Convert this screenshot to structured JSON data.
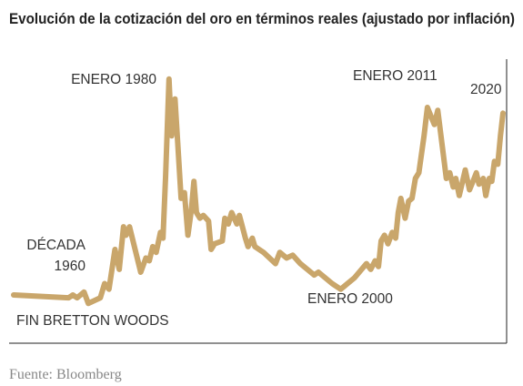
{
  "chart_data": {
    "type": "line",
    "title": "Evolución de la cotización del oro en términos reales (ajustado por inflación)",
    "source": "Fuente: Bloomberg",
    "annotations": [
      "ENERO 1980",
      "ENERO 2011",
      "2020",
      "DÉCADA",
      "1960",
      "ENERO 2000",
      "FIN BRETTON WOODS"
    ],
    "color": "#c9a66b",
    "xlim": [
      1962,
      2019
    ],
    "ylim": [
      0,
      100
    ],
    "x": [
      1962.0,
      1968.4,
      1968.9,
      1969.4,
      1970.2,
      1970.7,
      1972.1,
      1972.6,
      1973.1,
      1973.8,
      1974.3,
      1974.8,
      1975.1,
      1975.5,
      1976.8,
      1977.4,
      1977.8,
      1978.2,
      1978.6,
      1979.1,
      1979.4,
      1979.7,
      1980.1,
      1980.4,
      1980.8,
      1981.1,
      1981.5,
      1981.9,
      1982.3,
      1982.7,
      1983.0,
      1983.3,
      1983.7,
      1984.1,
      1984.7,
      1985.0,
      1985.4,
      1986.3,
      1986.6,
      1987.0,
      1987.4,
      1988.0,
      1988.3,
      1989.0,
      1989.3,
      1989.8,
      1990.1,
      1991.1,
      1992.5,
      1993.0,
      1993.8,
      1994.5,
      1995.4,
      1997.0,
      1997.5,
      1999.1,
      2000.1,
      2001.7,
      2003.1,
      2003.6,
      2004.1,
      2004.5,
      2004.8,
      2005.2,
      2005.6,
      2006.1,
      2006.5,
      2006.8,
      2007.1,
      2007.6,
      2008.0,
      2008.4,
      2008.8,
      2009.2,
      2009.8,
      2010.2,
      2010.6,
      2011.0,
      2011.4,
      2011.9,
      2012.4,
      2012.8,
      2013.2,
      2013.5,
      2013.9,
      2014.3,
      2014.6,
      2015.1,
      2015.5,
      2015.9,
      2016.2,
      2016.7,
      2017.0,
      2017.4,
      2017.7,
      2018.0,
      2018.4,
      2018.7,
      2019.0
    ],
    "values": [
      17,
      16,
      17,
      16,
      18,
      14,
      16,
      21,
      19,
      33,
      26,
      41,
      38,
      41,
      25,
      30,
      29,
      34,
      32,
      39,
      37,
      59,
      93,
      73,
      86,
      71,
      51,
      53,
      38,
      47,
      57,
      46,
      44,
      45,
      43,
      33,
      35,
      36,
      44,
      42,
      46,
      42,
      45,
      37,
      34,
      37,
      34,
      32,
      28,
      32,
      30,
      31,
      28,
      24,
      25,
      21,
      19,
      23,
      28,
      26,
      29,
      27,
      36,
      38,
      35,
      39,
      37,
      46,
      51,
      44,
      50,
      51,
      58,
      60,
      73,
      83,
      80,
      77,
      82,
      70,
      58,
      60,
      55,
      58,
      52,
      57,
      61,
      54,
      57,
      60,
      56,
      58,
      52,
      58,
      57,
      64,
      63,
      73,
      81
    ]
  }
}
